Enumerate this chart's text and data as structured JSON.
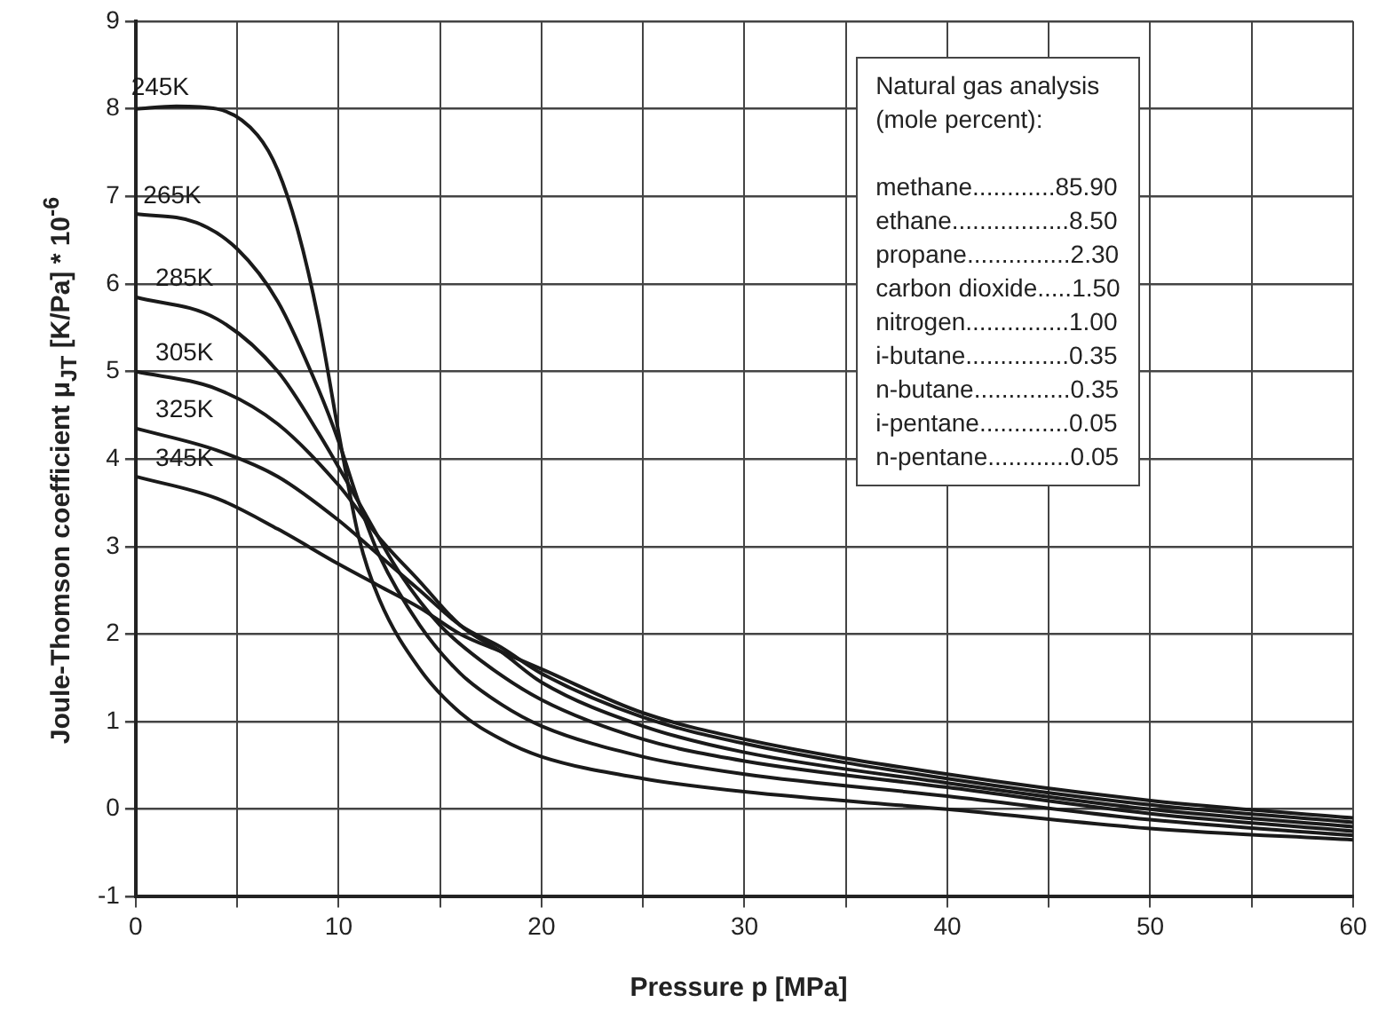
{
  "chart_data": {
    "type": "line",
    "xlabel": "Pressure p [MPa]",
    "ylabel": "Joule-Thomson coefficient μ$_{JT}$ [K/Pa] * 10$^{-6}$",
    "xlim": [
      0,
      60
    ],
    "xticks": [
      0,
      {
        "value": 5,
        "label": null
      },
      10,
      {
        "value": 15,
        "label": null
      },
      20,
      {
        "value": 25,
        "label": null
      },
      30,
      {
        "value": 35,
        "label": null
      },
      40,
      {
        "value": 45,
        "label": null
      },
      50,
      {
        "value": 55,
        "label": null
      },
      60
    ],
    "ylim": [
      -1,
      9
    ],
    "yticks": [
      -1,
      0,
      1,
      2,
      3,
      4,
      5,
      6,
      7,
      8,
      9
    ],
    "grid": true,
    "legend": false,
    "marker": "none",
    "line_style": "solid",
    "annotations": [
      "Natural gas analysis",
      "(mole percent):",
      "methane............85.90",
      "ethane.................8.50",
      "propane...............2.30",
      "carbon dioxide.....1.50",
      "nitrogen...............1.00",
      "i-butane...............0.35",
      "n-butane..............0.35",
      "i-pentane.............0.05",
      "n-pentane............0.05"
    ],
    "series": [
      {
        "name": "245K",
        "color": "#1a1a1a",
        "x": [
          0,
          2,
          4,
          6,
          7,
          8,
          9,
          10,
          11,
          12,
          14,
          16,
          18,
          20,
          25,
          30,
          40,
          50,
          60
        ],
        "values": [
          8.0,
          8.03,
          8.0,
          7.7,
          7.3,
          6.6,
          5.6,
          4.3,
          3.1,
          2.4,
          1.6,
          1.1,
          0.8,
          0.6,
          0.35,
          0.2,
          0.0,
          -0.22,
          -0.35
        ]
      },
      {
        "name": "265K",
        "color": "#1a1a1a",
        "x": [
          0,
          3,
          5,
          7,
          9,
          10,
          11,
          12,
          14,
          16,
          18,
          20,
          25,
          30,
          40,
          50,
          60
        ],
        "values": [
          6.8,
          6.7,
          6.4,
          5.8,
          4.8,
          4.2,
          3.5,
          2.9,
          2.1,
          1.55,
          1.2,
          0.95,
          0.6,
          0.4,
          0.15,
          -0.12,
          -0.3
        ]
      },
      {
        "name": "285K",
        "color": "#1a1a1a",
        "x": [
          0,
          4,
          7,
          9,
          11,
          13,
          15,
          17,
          20,
          25,
          30,
          40,
          50,
          60
        ],
        "values": [
          5.85,
          5.6,
          5.0,
          4.3,
          3.5,
          2.7,
          2.1,
          1.7,
          1.25,
          0.8,
          0.55,
          0.25,
          -0.05,
          -0.25
        ]
      },
      {
        "name": "305K",
        "color": "#1a1a1a",
        "x": [
          0,
          4,
          7,
          10,
          12,
          14,
          16,
          18,
          20,
          25,
          30,
          40,
          50,
          60
        ],
        "values": [
          5.0,
          4.8,
          4.4,
          3.7,
          3.1,
          2.6,
          2.1,
          1.8,
          1.45,
          0.95,
          0.65,
          0.3,
          0.0,
          -0.2
        ]
      },
      {
        "name": "325K",
        "color": "#1a1a1a",
        "x": [
          0,
          4,
          7,
          10,
          12,
          14,
          16,
          18,
          20,
          25,
          30,
          40,
          50,
          60
        ],
        "values": [
          4.35,
          4.1,
          3.8,
          3.3,
          2.9,
          2.5,
          2.1,
          1.85,
          1.55,
          1.05,
          0.75,
          0.35,
          0.05,
          -0.15
        ]
      },
      {
        "name": "345K",
        "color": "#1a1a1a",
        "x": [
          0,
          4,
          7,
          10,
          12,
          14,
          16,
          18,
          20,
          25,
          30,
          40,
          50,
          60
        ],
        "values": [
          3.8,
          3.55,
          3.2,
          2.8,
          2.55,
          2.3,
          2.0,
          1.8,
          1.6,
          1.1,
          0.8,
          0.4,
          0.1,
          -0.1
        ]
      }
    ]
  }
}
